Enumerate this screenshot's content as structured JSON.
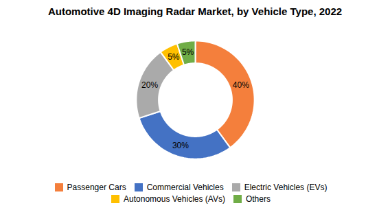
{
  "chart_data": {
    "type": "pie",
    "title": "Automotive 4D Imaging Radar Market, by Vehicle Type, 2022",
    "categories": [
      "Passenger Cars",
      "Commercial Vehicles",
      "Electric Vehicles (EVs)",
      "Autonomous Vehicles (AVs)",
      "Others"
    ],
    "values": [
      40,
      30,
      20,
      5,
      5
    ],
    "value_labels": [
      "40%",
      "30%",
      "20%",
      "5%",
      "5%"
    ],
    "colors": [
      "#F47F3C",
      "#4472C4",
      "#AAAAAA",
      "#FFC000",
      "#70AD47"
    ],
    "data_labels": true,
    "legend": "bottom"
  }
}
